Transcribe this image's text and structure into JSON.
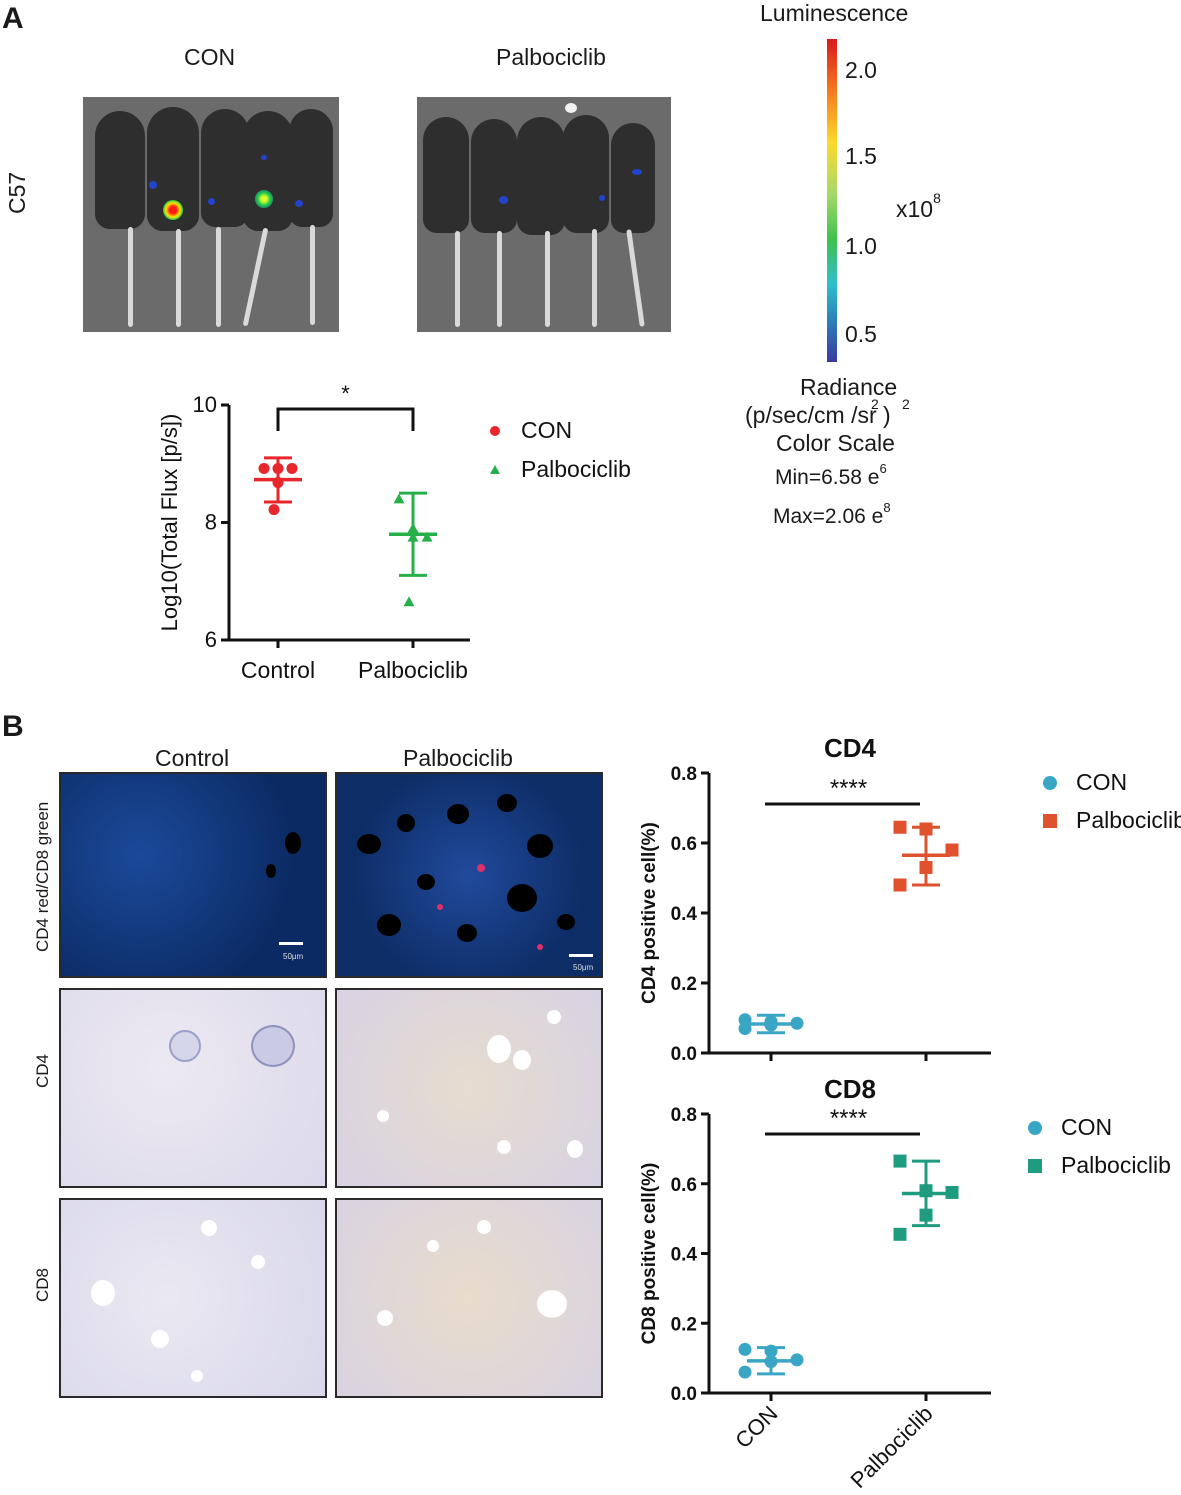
{
  "panel_a": {
    "letter": "A",
    "col_con": "CON",
    "col_palbo": "Palbociclib",
    "row_label": "C57",
    "colorbar": {
      "title": "Luminescence",
      "ticks": [
        "2.0",
        "1.5",
        "1.0",
        "0.5"
      ],
      "multiplier": "x10",
      "multiplier_exp": "8",
      "radiance": "Radiance",
      "units": "(p/sec/cm  /sr )",
      "units_sup1": "2",
      "units_sup2": "2",
      "color_scale": "Color Scale",
      "min": "Min=6.58 e",
      "min_exp": "6",
      "max": "Max=2.06 e",
      "max_exp": "8"
    }
  },
  "panel_b": {
    "letter": "B",
    "col_control": "Control",
    "col_palbo": "Palbociclib",
    "row_if": "CD4 red/CD8 green",
    "row_cd4": "CD4",
    "row_cd8": "CD8",
    "scale_text": "50μm"
  },
  "chart_data": [
    {
      "type": "scatter",
      "ylabel": "Log10(Total Flux [p/s])",
      "categories": [
        "Control",
        "Palbociclib"
      ],
      "ylim": [
        6,
        10
      ],
      "yticks": [
        "6",
        "8",
        "10"
      ],
      "significance": "*",
      "legend": {
        "placement": "right",
        "entries": [
          "CON",
          "Palbociclib"
        ]
      },
      "series": [
        {
          "name": "CON",
          "color": "#e8262b",
          "marker": "circle",
          "category": "Control",
          "values": [
            8.92,
            8.92,
            8.92,
            8.68,
            8.22
          ],
          "mean": 8.73,
          "sd_low": 8.35,
          "sd_high": 9.1
        },
        {
          "name": "Palbociclib",
          "color": "#27b04a",
          "marker": "triangle",
          "category": "Palbociclib",
          "values": [
            8.4,
            7.9,
            7.75,
            7.75,
            6.65
          ],
          "mean": 7.8,
          "sd_low": 7.1,
          "sd_high": 8.5
        }
      ]
    },
    {
      "type": "scatter",
      "title": "CD4",
      "ylabel": "CD4 positive cell(%)",
      "categories": [
        "CON",
        "Palbociclib"
      ],
      "ylim": [
        0,
        0.8
      ],
      "yticks": [
        "0.0",
        "0.2",
        "0.4",
        "0.6",
        "0.8"
      ],
      "significance": "****",
      "legend": {
        "placement": "right",
        "entries": [
          "CON",
          "Palbociclib"
        ]
      },
      "series": [
        {
          "name": "CON",
          "color": "#3aa6c6",
          "marker": "circle",
          "category": "CON",
          "values": [
            0.095,
            0.09,
            0.085,
            0.08,
            0.07
          ],
          "mean": 0.083,
          "sd_low": 0.058,
          "sd_high": 0.108
        },
        {
          "name": "Palbociclib",
          "color": "#e0512e",
          "marker": "square",
          "category": "Palbociclib",
          "values": [
            0.645,
            0.64,
            0.58,
            0.53,
            0.48
          ],
          "mean": 0.565,
          "sd_low": 0.48,
          "sd_high": 0.645
        }
      ]
    },
    {
      "type": "scatter",
      "title": "CD8",
      "ylabel": "CD8 positive cell(%)",
      "categories": [
        "CON",
        "Palbociclib"
      ],
      "ylim": [
        0,
        0.8
      ],
      "yticks": [
        "0.0",
        "0.2",
        "0.4",
        "0.6",
        "0.8"
      ],
      "significance": "****",
      "legend": {
        "placement": "right",
        "entries": [
          "CON",
          "Palbociclib"
        ]
      },
      "series": [
        {
          "name": "CON",
          "color": "#3aa6c6",
          "marker": "circle",
          "category": "CON",
          "values": [
            0.125,
            0.12,
            0.095,
            0.09,
            0.06
          ],
          "mean": 0.092,
          "sd_low": 0.055,
          "sd_high": 0.13
        },
        {
          "name": "Palbociclib",
          "color": "#1f9b80",
          "marker": "square",
          "category": "Palbociclib",
          "values": [
            0.665,
            0.58,
            0.575,
            0.51,
            0.455
          ],
          "mean": 0.572,
          "sd_low": 0.48,
          "sd_high": 0.665
        }
      ]
    }
  ]
}
